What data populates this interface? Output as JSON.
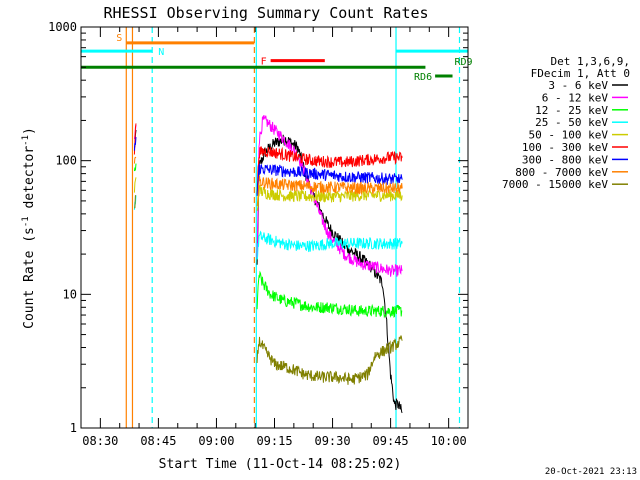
{
  "chart_data": {
    "type": "line",
    "title": "RHESSI Observing Summary Count Rates",
    "xlabel": "Start Time (11-Oct-14 08:25:02)",
    "ylabel_parts": [
      "Count Rate (s",
      "-1",
      " detector",
      "-1",
      ")"
    ],
    "y_scale": "log",
    "ylim": [
      1,
      1000
    ],
    "xlim_minutes_after_0825": [
      0,
      100
    ],
    "x_ticks": [
      {
        "minute": 5,
        "label": "08:30"
      },
      {
        "minute": 20,
        "label": "08:45"
      },
      {
        "minute": 35,
        "label": "09:00"
      },
      {
        "minute": 50,
        "label": "09:15"
      },
      {
        "minute": 65,
        "label": "09:30"
      },
      {
        "minute": 80,
        "label": "09:45"
      },
      {
        "minute": 95,
        "label": "10:00"
      }
    ],
    "y_ticks": [
      {
        "value": 1,
        "label": "1"
      },
      {
        "value": 10,
        "label": "10"
      },
      {
        "value": 100,
        "label": "100"
      },
      {
        "value": 1000,
        "label": "1000"
      }
    ],
    "legend": {
      "header": [
        "Det 1,3,6,9,",
        "FDecim 1, Att 0"
      ],
      "placement": "right"
    },
    "series": [
      {
        "name": "3 - 6 keV",
        "color": "#000000",
        "x": [
          13.8,
          14.2,
          45.5,
          46.0,
          47.5,
          50.0,
          53.0,
          56.0,
          58.0,
          60.0,
          64.0,
          68.0,
          72.0,
          75.0,
          78.0,
          79.0,
          80.0,
          81.0,
          82.0,
          83.0
        ],
        "y": [
          120,
          170,
          15,
          90,
          115,
          135,
          145,
          125,
          80,
          55,
          32,
          23,
          19,
          16,
          12,
          6,
          2.5,
          1.5,
          1.5,
          1.3
        ]
      },
      {
        "name": "6 - 12 keV",
        "color": "#ff00ff",
        "x": [
          13.8,
          14.2,
          45.5,
          46.0,
          47.0,
          48.0,
          50.0,
          53.0,
          56.0,
          58.0,
          60.0,
          62.0,
          64.0,
          68.0,
          72.0,
          76.0,
          80.0,
          83.0
        ],
        "y": [
          140,
          185,
          18,
          140,
          200,
          195,
          170,
          140,
          110,
          80,
          55,
          38,
          28,
          20,
          17,
          16,
          15,
          15
        ]
      },
      {
        "name": "12 - 25 keV",
        "color": "#00ff00",
        "x": [
          13.8,
          14.2,
          45.5,
          46.0,
          47.0,
          49.0,
          52.0,
          56.0,
          60.0,
          64.0,
          68.0,
          72.0,
          76.0,
          80.0,
          83.0
        ],
        "y": [
          80,
          95,
          8,
          14,
          12,
          10,
          9,
          8.5,
          8,
          8,
          7.8,
          7.5,
          7.5,
          7.5,
          7.5
        ]
      },
      {
        "name": "25 - 50 keV",
        "color": "#00ffff",
        "x": [
          13.8,
          14.2,
          45.5,
          46.0,
          48.0,
          52.0,
          56.0,
          60.0,
          64.0,
          68.0,
          72.0,
          76.0,
          80.0,
          83.0
        ],
        "y": [
          45,
          55,
          18,
          27,
          26,
          24,
          23,
          23,
          24,
          24,
          24,
          24,
          24,
          24
        ]
      },
      {
        "name": "50 - 100 keV",
        "color": "#cccc00",
        "x": [
          13.8,
          14.2,
          45.5,
          46.0,
          48.0,
          52.0,
          56.0,
          60.0,
          64.0,
          68.0,
          72.0,
          76.0,
          80.0,
          83.0
        ],
        "y": [
          60,
          75,
          40,
          60,
          57,
          55,
          54,
          54,
          54,
          54,
          55,
          55,
          55,
          55
        ]
      },
      {
        "name": "100 - 300 keV",
        "color": "#ff0000",
        "x": [
          13.8,
          14.2,
          45.5,
          46.0,
          48.0,
          52.0,
          56.0,
          60.0,
          64.0,
          68.0,
          72.0,
          76.0,
          80.0,
          83.0
        ],
        "y": [
          120,
          190,
          60,
          115,
          118,
          112,
          105,
          100,
          98,
          97,
          100,
          103,
          106,
          105
        ]
      },
      {
        "name": "300 - 800 keV",
        "color": "#0000ff",
        "x": [
          13.8,
          14.2,
          45.5,
          46.0,
          48.0,
          52.0,
          56.0,
          60.0,
          64.0,
          68.0,
          72.0,
          76.0,
          80.0,
          83.0
        ],
        "y": [
          115,
          150,
          55,
          88,
          86,
          84,
          82,
          80,
          78,
          76,
          75,
          74,
          73,
          72
        ]
      },
      {
        "name": "800 - 7000 keV",
        "color": "#ff8000",
        "x": [
          13.8,
          14.2,
          45.5,
          46.0,
          48.0,
          52.0,
          56.0,
          60.0,
          64.0,
          68.0,
          72.0,
          76.0,
          80.0,
          83.0
        ],
        "y": [
          90,
          105,
          50,
          70,
          68,
          66,
          65,
          64,
          63,
          63,
          62,
          62,
          62,
          62
        ]
      },
      {
        "name": "7000 - 15000 keV",
        "color": "#808000",
        "x": [
          13.8,
          14.2,
          45.5,
          46.0,
          48.0,
          50.0,
          54.0,
          58.0,
          62.0,
          66.0,
          70.0,
          74.0,
          76.0,
          80.0,
          83.0
        ],
        "y": [
          40,
          55,
          3.2,
          4.5,
          3.6,
          3.0,
          2.8,
          2.5,
          2.4,
          2.4,
          2.3,
          2.5,
          3.5,
          4.0,
          4.5
        ]
      }
    ],
    "annotations": [
      {
        "label": "S",
        "color": "#ff8000",
        "type": "bar",
        "x": [
          11.7,
          44.8
        ],
        "y": 760
      },
      {
        "label": "N",
        "color": "#00ffff",
        "type": "bar_left",
        "x": [
          0,
          18.4
        ],
        "y": 660
      },
      {
        "label": "F",
        "color": "#ff0000",
        "type": "bar",
        "x": [
          49,
          63
        ],
        "y": 560
      },
      {
        "label": "",
        "color": "#008000",
        "type": "bar",
        "x": [
          0,
          89
        ],
        "y": 500
      },
      {
        "label": "RD6",
        "color": "#008000",
        "type": "bar",
        "x": [
          91.5,
          96
        ],
        "y": 430
      },
      {
        "label": "RD9",
        "color": "#008000",
        "type": "text",
        "x": 96.5,
        "y": 520
      },
      {
        "label": "",
        "color": "#00ffff",
        "type": "bar_right",
        "x": [
          81.4,
          100
        ],
        "y": 660
      }
    ],
    "vertical_lines": [
      {
        "minute": 11.7,
        "color": "#ff8000",
        "style": "solid"
      },
      {
        "minute": 13.3,
        "color": "#ff8000",
        "style": "solid"
      },
      {
        "minute": 18.4,
        "color": "#00ffff",
        "style": "dashed"
      },
      {
        "minute": 44.8,
        "color": "#ff8000",
        "style": "dashed"
      },
      {
        "minute": 45.3,
        "color": "#00ffff",
        "style": "solid"
      },
      {
        "minute": 81.4,
        "color": "#00ffff",
        "style": "solid"
      },
      {
        "minute": 97.8,
        "color": "#00ffff",
        "style": "dashed"
      }
    ],
    "footer_timestamp": "20-Oct-2021 23:13"
  }
}
